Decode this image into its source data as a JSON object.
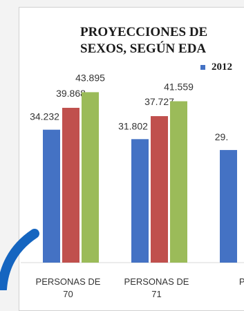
{
  "chart_data": {
    "type": "bar",
    "title": "PROYECCIONES DE\nSEXOS, SEGÚN EDA",
    "categories": [
      "PERSONAS DE\n70",
      "PERSONAS DE\n71",
      "PE"
    ],
    "series": [
      {
        "name": "2012",
        "color": "#4472c4",
        "values": [
          34232,
          31802,
          29000
        ]
      },
      {
        "color": "#c0504d",
        "values": [
          39868,
          37727,
          null
        ]
      },
      {
        "color": "#9bbb59",
        "values": [
          43895,
          41559,
          null
        ]
      }
    ],
    "data_labels": [
      [
        "34.232",
        "31.802",
        "29."
      ],
      [
        "39.868",
        "37.727",
        ""
      ],
      [
        "43.895",
        "41.559",
        ""
      ]
    ],
    "ylim": [
      0,
      55000
    ],
    "legend": {
      "position": "top-right",
      "visible_entries": [
        "2012"
      ]
    },
    "grid": false
  }
}
